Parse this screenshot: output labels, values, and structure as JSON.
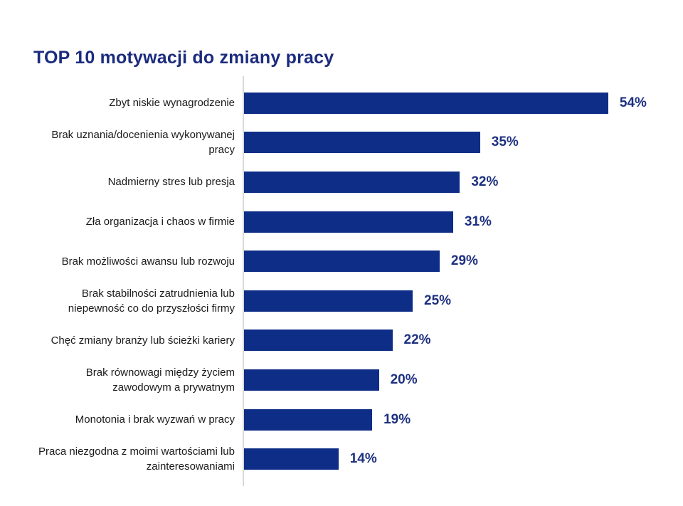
{
  "title": "TOP 10 motywacji do zmiany pracy",
  "chart_data": {
    "type": "bar",
    "orientation": "horizontal",
    "title": "TOP 10 motywacji do zmiany pracy",
    "unit": "%",
    "xlim": [
      0,
      57
    ],
    "grid": false,
    "legend": false,
    "categories": [
      "Zbyt niskie wynagrodzenie",
      "Brak uznania/docenienia wykonywanej pracy",
      "Nadmierny stres lub presja",
      "Zła organizacja i chaos w firmie",
      "Brak możliwości awansu lub rozwoju",
      "Brak stabilności zatrudnienia lub niepewność co do przyszłości firmy",
      "Chęć zmiany branży lub ścieżki kariery",
      "Brak równowagi między życiem zawodowym a prywatnym",
      "Monotonia i brak wyzwań w pracy",
      "Praca niezgodna z moimi wartościami lub zainteresowaniami"
    ],
    "values": [
      54,
      35,
      32,
      31,
      29,
      25,
      22,
      20,
      19,
      14
    ],
    "items": [
      {
        "label": "Zbyt niskie wynagrodzenie",
        "value": 54,
        "value_label": "54%"
      },
      {
        "label": "Brak uznania/docenienia wykonywanej pracy",
        "value": 35,
        "value_label": "35%"
      },
      {
        "label": "Nadmierny stres lub presja",
        "value": 32,
        "value_label": "32%"
      },
      {
        "label": "Zła organizacja i chaos w firmie",
        "value": 31,
        "value_label": "31%"
      },
      {
        "label": "Brak możliwości awansu lub rozwoju",
        "value": 29,
        "value_label": "29%"
      },
      {
        "label": "Brak stabilności zatrudnienia lub niepewność co do przyszłości firmy",
        "value": 25,
        "value_label": "25%"
      },
      {
        "label": "Chęć zmiany branży lub ścieżki kariery",
        "value": 22,
        "value_label": "22%"
      },
      {
        "label": "Brak równowagi między życiem zawodowym a prywatnym",
        "value": 20,
        "value_label": "20%"
      },
      {
        "label": "Monotonia i brak wyzwań w pracy",
        "value": 19,
        "value_label": "19%"
      },
      {
        "label": "Praca niezgodna z moimi wartościami lub zainteresowaniami",
        "value": 14,
        "value_label": "14%"
      }
    ],
    "colors": {
      "bar": "#0e2d87",
      "title": "#1b2b7e",
      "value_label": "#1d3080",
      "category_label": "#1a1a1a",
      "axis_line": "#d9d9d9",
      "background": "#ffffff"
    }
  }
}
